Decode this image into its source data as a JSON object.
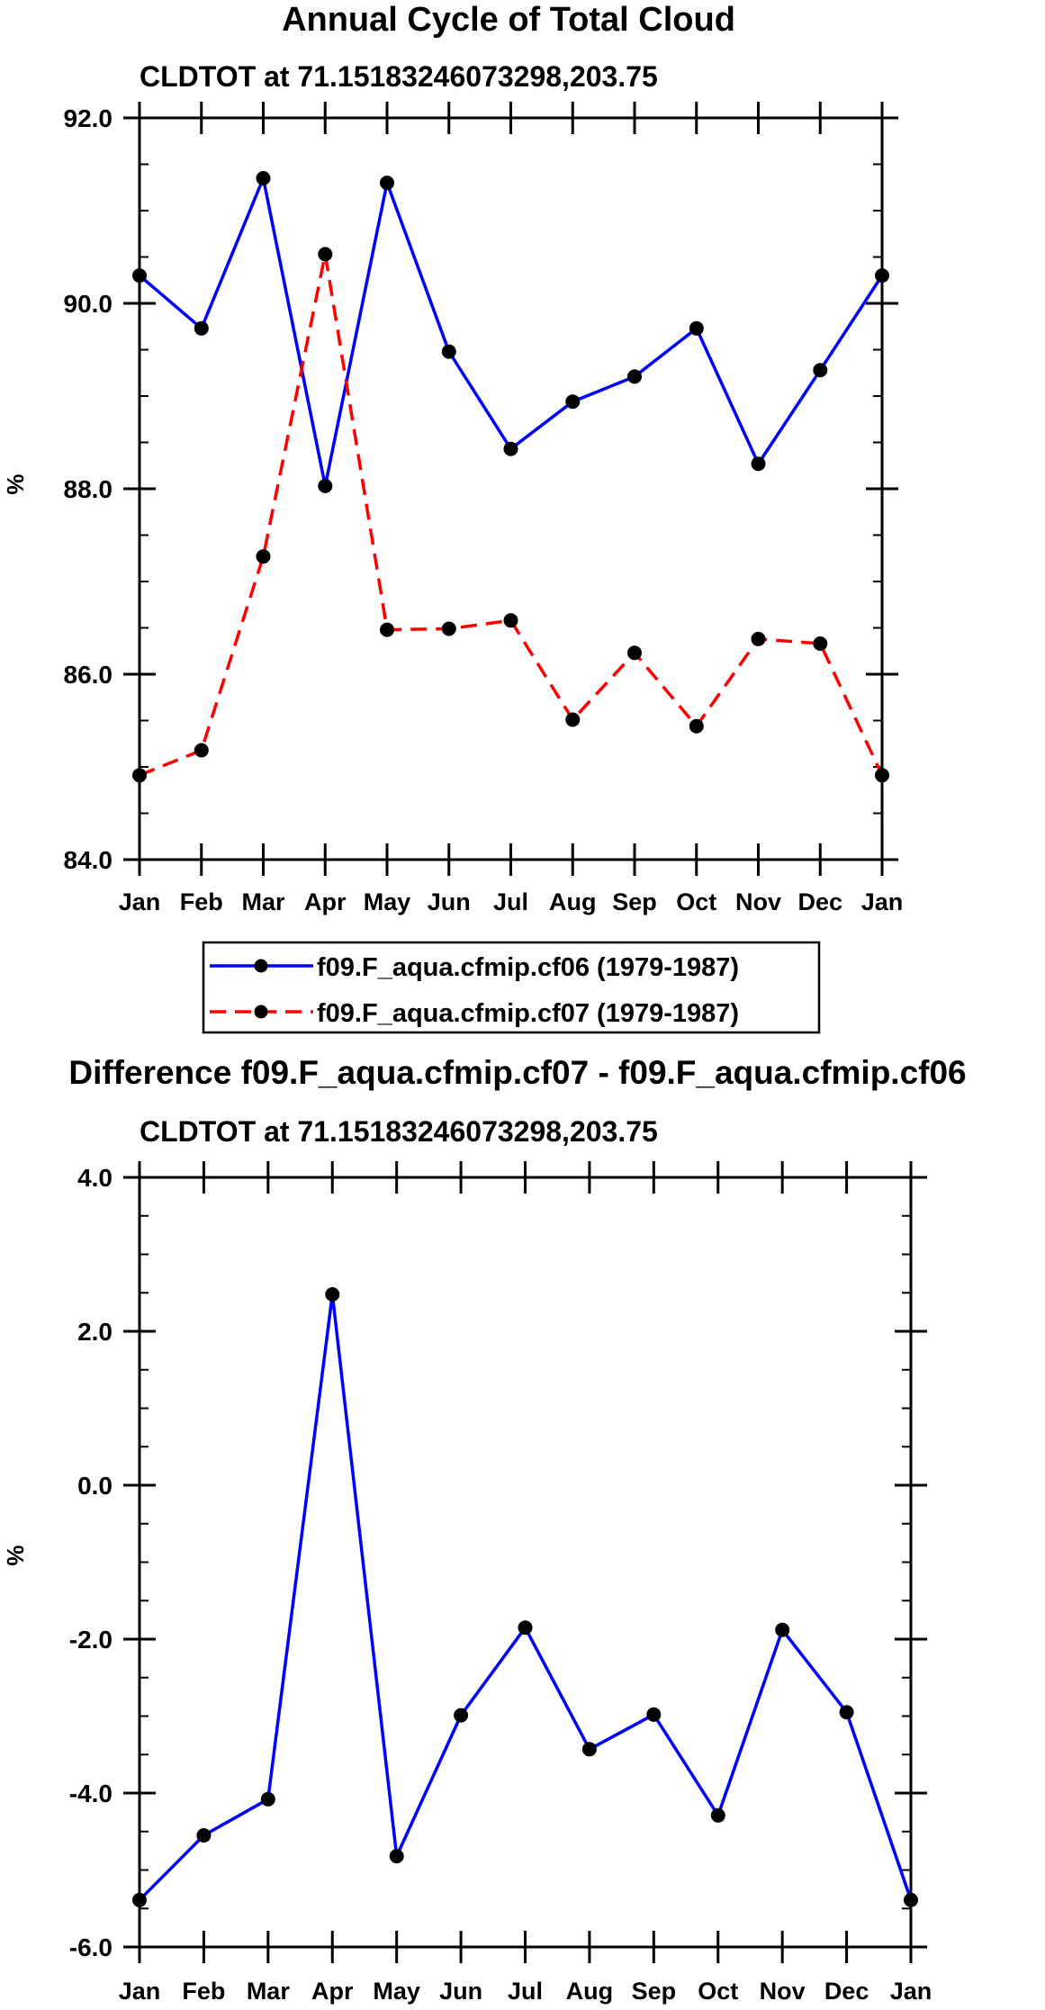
{
  "figure_title": "Annual Cycle of Total Cloud",
  "legend": {
    "entries": [
      {
        "label": "f09.F_aqua.cfmip.cf06 (1979-1987)",
        "color": "#0000ff",
        "dash": "solid"
      },
      {
        "label": "f09.F_aqua.cfmip.cf07 (1979-1987)",
        "color": "#ff0000",
        "dash": "dashed"
      }
    ]
  },
  "chart_data": [
    {
      "type": "line",
      "title": "CLDTOT at 71.15183246073298,203.75",
      "ylabel": "%",
      "xlabel": "",
      "categories": [
        "Jan",
        "Feb",
        "Mar",
        "Apr",
        "May",
        "Jun",
        "Jul",
        "Aug",
        "Sep",
        "Oct",
        "Nov",
        "Dec",
        "Jan"
      ],
      "ylim": [
        84.0,
        92.0
      ],
      "yticks": [
        84.0,
        86.0,
        88.0,
        90.0,
        92.0
      ],
      "ytick_labels": [
        "84.0",
        "86.0",
        "88.0",
        "90.0",
        "92.0"
      ],
      "yminor_step": 0.5,
      "series": [
        {
          "name": "f09.F_aqua.cfmip.cf06 (1979-1987)",
          "color": "#0000ff",
          "dash": "solid",
          "values": [
            90.3,
            89.73,
            91.35,
            88.03,
            91.3,
            89.48,
            88.43,
            88.94,
            89.21,
            89.73,
            88.27,
            89.28,
            90.3
          ]
        },
        {
          "name": "f09.F_aqua.cfmip.cf07 (1979-1987)",
          "color": "#ff0000",
          "dash": "dashed",
          "values": [
            84.91,
            85.18,
            87.27,
            90.53,
            86.48,
            86.49,
            86.58,
            85.51,
            86.23,
            85.44,
            86.38,
            86.33,
            84.91
          ]
        }
      ]
    },
    {
      "type": "line",
      "suptitle": "Difference f09.F_aqua.cfmip.cf07 - f09.F_aqua.cfmip.cf06",
      "title": "CLDTOT at 71.15183246073298,203.75",
      "ylabel": "%",
      "xlabel": "",
      "categories": [
        "Jan",
        "Feb",
        "Mar",
        "Apr",
        "May",
        "Jun",
        "Jul",
        "Aug",
        "Sep",
        "Oct",
        "Nov",
        "Dec",
        "Jan"
      ],
      "ylim": [
        -6.0,
        4.0
      ],
      "yticks": [
        -6.0,
        -4.0,
        -2.0,
        0.0,
        2.0,
        4.0
      ],
      "ytick_labels": [
        "-6.0",
        "-4.0",
        "-2.0",
        "0.0",
        "2.0",
        "4.0"
      ],
      "yminor_step": 0.5,
      "series": [
        {
          "name": "difference",
          "color": "#0000ff",
          "dash": "solid",
          "values": [
            -5.39,
            -4.55,
            -4.08,
            2.48,
            -4.82,
            -2.99,
            -1.85,
            -3.43,
            -2.98,
            -4.29,
            -1.88,
            -2.95,
            -5.39
          ]
        }
      ]
    }
  ]
}
